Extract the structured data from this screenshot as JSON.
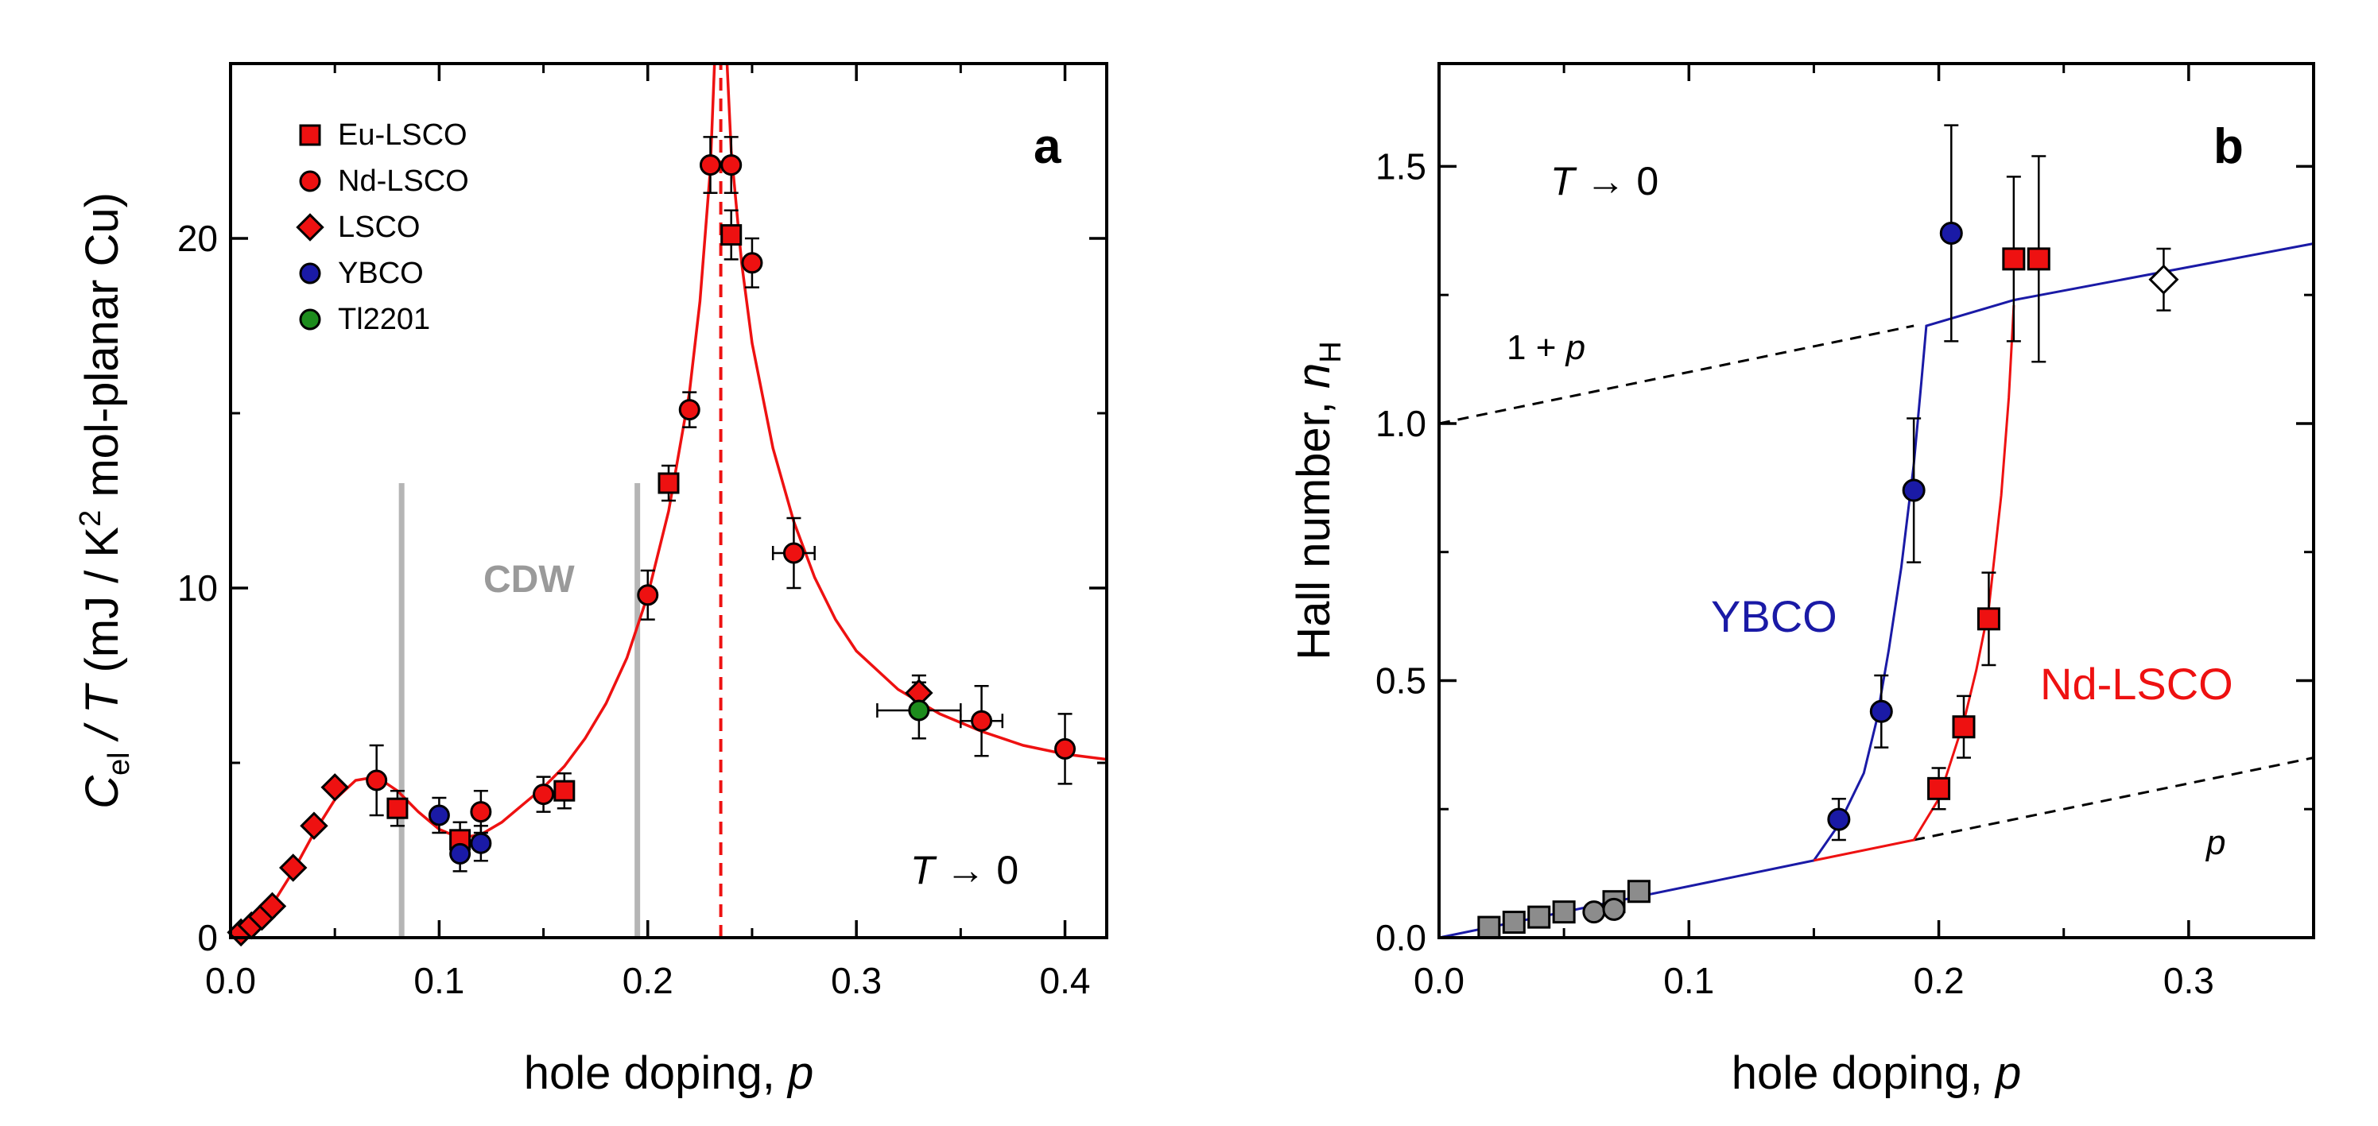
{
  "chart_data": [
    {
      "id": "a",
      "type": "scatter",
      "panel_label": "a",
      "xlabel_text": "hole doping, ",
      "xlabel_var": "p",
      "ylabel_C": "C",
      "ylabel_sub": "el",
      "ylabel_T": " / T",
      "ylabel_units_1": " (mJ / K",
      "ylabel_sup": "2",
      "ylabel_units_2": " mol-planar Cu)",
      "xlim": [
        0,
        0.42
      ],
      "ylim": [
        0,
        25
      ],
      "xticks": [
        0.0,
        0.1,
        0.2,
        0.3,
        0.4
      ],
      "xtick_labels": [
        "0.0",
        "0.1",
        "0.2",
        "0.3",
        "0.4"
      ],
      "yticks": [
        0,
        10,
        20
      ],
      "ytick_labels": [
        "0",
        "10",
        "20"
      ],
      "annotation_T": "T",
      "annotation_rest": " → 0",
      "cdw_label": "CDW",
      "cdw_lines": [
        {
          "x": 0.082,
          "y1": 0,
          "y2": 13
        },
        {
          "x": 0.195,
          "y1": 0,
          "y2": 13
        }
      ],
      "pstar_line": {
        "x": 0.235,
        "y1": 0,
        "y2": 25
      },
      "colors": {
        "red": "#ee1111",
        "blue": "#1a1aa6",
        "green": "#1d8c1d",
        "gray": "#b5b5b5"
      },
      "legend": [
        {
          "label": "Eu-LSCO",
          "marker": "square",
          "color": "#ee1111"
        },
        {
          "label": "Nd-LSCO",
          "marker": "circle",
          "color": "#ee1111"
        },
        {
          "label": "LSCO",
          "marker": "diamond",
          "color": "#ee1111"
        },
        {
          "label": "YBCO",
          "marker": "circle",
          "color": "#1a1aa6"
        },
        {
          "label": "Tl2201",
          "marker": "circle",
          "color": "#1d8c1d"
        }
      ],
      "series": [
        {
          "name": "Eu-LSCO",
          "marker": "square",
          "color": "#ee1111",
          "points": [
            {
              "x": 0.08,
              "y": 3.7,
              "ey": 0.5
            },
            {
              "x": 0.11,
              "y": 2.8,
              "ey": 0.5
            },
            {
              "x": 0.16,
              "y": 4.2,
              "ey": 0.5
            },
            {
              "x": 0.21,
              "y": 13.0,
              "ey": 0.5
            },
            {
              "x": 0.24,
              "y": 20.1,
              "ey": 0.7
            }
          ]
        },
        {
          "name": "Nd-LSCO",
          "marker": "circle",
          "color": "#ee1111",
          "points": [
            {
              "x": 0.07,
              "y": 4.5,
              "ey": 1.0
            },
            {
              "x": 0.12,
              "y": 3.6,
              "ey": 0.6
            },
            {
              "x": 0.15,
              "y": 4.1,
              "ey": 0.5
            },
            {
              "x": 0.2,
              "y": 9.8,
              "ey": 0.7
            },
            {
              "x": 0.22,
              "y": 15.1,
              "ey": 0.5
            },
            {
              "x": 0.23,
              "y": 22.1,
              "ey": 0.8
            },
            {
              "x": 0.24,
              "y": 22.1,
              "ey": 0.8
            },
            {
              "x": 0.25,
              "y": 19.3,
              "ey": 0.7
            },
            {
              "x": 0.27,
              "y": 11.0,
              "ey": 1.0,
              "ex": 0.01
            },
            {
              "x": 0.36,
              "y": 6.2,
              "ey": 1.0,
              "ex": 0.01
            },
            {
              "x": 0.4,
              "y": 5.4,
              "ey": 1.0
            }
          ]
        },
        {
          "name": "LSCO",
          "marker": "diamond",
          "color": "#ee1111",
          "points": [
            {
              "x": 0.005,
              "y": 0.15
            },
            {
              "x": 0.01,
              "y": 0.35
            },
            {
              "x": 0.015,
              "y": 0.6
            },
            {
              "x": 0.02,
              "y": 0.9
            },
            {
              "x": 0.03,
              "y": 2.0
            },
            {
              "x": 0.04,
              "y": 3.2
            },
            {
              "x": 0.05,
              "y": 4.3
            },
            {
              "x": 0.33,
              "y": 7.0,
              "ey": 0.5
            }
          ]
        },
        {
          "name": "YBCO",
          "marker": "circle",
          "color": "#1a1aa6",
          "points": [
            {
              "x": 0.1,
              "y": 3.5,
              "ey": 0.5
            },
            {
              "x": 0.11,
              "y": 2.4,
              "ey": 0.5
            },
            {
              "x": 0.12,
              "y": 2.7,
              "ey": 0.5
            }
          ]
        },
        {
          "name": "Tl2201",
          "marker": "circle",
          "color": "#1d8c1d",
          "points": [
            {
              "x": 0.33,
              "y": 6.5,
              "ey": 0.8,
              "ex": 0.02
            }
          ]
        }
      ],
      "fit_curve": {
        "color": "#ee1111",
        "points": [
          [
            0.0,
            0.0
          ],
          [
            0.01,
            0.35
          ],
          [
            0.02,
            0.95
          ],
          [
            0.03,
            1.9
          ],
          [
            0.04,
            3.0
          ],
          [
            0.05,
            3.95
          ],
          [
            0.06,
            4.5
          ],
          [
            0.07,
            4.6
          ],
          [
            0.08,
            4.2
          ],
          [
            0.09,
            3.6
          ],
          [
            0.1,
            3.1
          ],
          [
            0.11,
            2.85
          ],
          [
            0.12,
            2.95
          ],
          [
            0.13,
            3.3
          ],
          [
            0.14,
            3.8
          ],
          [
            0.15,
            4.3
          ],
          [
            0.16,
            4.9
          ],
          [
            0.17,
            5.7
          ],
          [
            0.18,
            6.7
          ],
          [
            0.19,
            8.0
          ],
          [
            0.2,
            9.8
          ],
          [
            0.21,
            12.2
          ],
          [
            0.22,
            15.6
          ],
          [
            0.225,
            18.2
          ],
          [
            0.23,
            22.0
          ],
          [
            0.232,
            25.0
          ],
          [
            0.238,
            25.0
          ],
          [
            0.24,
            22.5
          ],
          [
            0.245,
            19.3
          ],
          [
            0.25,
            17.0
          ],
          [
            0.26,
            14.0
          ],
          [
            0.27,
            11.9
          ],
          [
            0.28,
            10.3
          ],
          [
            0.29,
            9.1
          ],
          [
            0.3,
            8.2
          ],
          [
            0.32,
            7.1
          ],
          [
            0.34,
            6.4
          ],
          [
            0.36,
            5.9
          ],
          [
            0.38,
            5.5
          ],
          [
            0.4,
            5.25
          ],
          [
            0.42,
            5.1
          ]
        ]
      }
    },
    {
      "id": "b",
      "type": "scatter",
      "panel_label": "b",
      "xlabel_text": "hole doping, ",
      "xlabel_var": "p",
      "ylabel_text": "Hall number, ",
      "ylabel_var": "n",
      "ylabel_sub": "H",
      "xlim": [
        0,
        0.35
      ],
      "ylim": [
        0,
        1.7
      ],
      "xticks": [
        0.0,
        0.1,
        0.2,
        0.3
      ],
      "xtick_labels": [
        "0.0",
        "0.1",
        "0.2",
        "0.3"
      ],
      "yticks": [
        0.0,
        0.5,
        1.0,
        1.5
      ],
      "ytick_labels": [
        "0.0",
        "0.5",
        "1.0",
        "1.5"
      ],
      "annotation_T": "T",
      "annotation_rest": " → 0",
      "label_1p_text": "1 + ",
      "label_1p_var": "p",
      "label_p": "p",
      "label_ybco": "YBCO",
      "label_ndlsco": "Nd-LSCO",
      "colors": {
        "red": "#ee1111",
        "blue": "#1a1aa6",
        "gray": "#8c8c8c"
      },
      "dashed_lines": [
        {
          "name": "1+p",
          "x1": 0.0,
          "y1": 1.0,
          "x2": 0.19,
          "y2": 1.19
        },
        {
          "name": "p",
          "x1": 0.19,
          "y1": 0.19,
          "x2": 0.35,
          "y2": 0.35
        }
      ],
      "blue_line": {
        "color": "#1a1aa6",
        "points": [
          [
            0.0,
            0.0
          ],
          [
            0.15,
            0.15
          ],
          [
            0.16,
            0.22
          ],
          [
            0.17,
            0.32
          ],
          [
            0.175,
            0.42
          ],
          [
            0.18,
            0.56
          ],
          [
            0.185,
            0.72
          ],
          [
            0.19,
            0.92
          ],
          [
            0.193,
            1.08
          ],
          [
            0.195,
            1.19
          ],
          [
            0.23,
            1.24
          ],
          [
            0.35,
            1.35
          ]
        ]
      },
      "red_line": {
        "color": "#ee1111",
        "points": [
          [
            0.15,
            0.15
          ],
          [
            0.19,
            0.19
          ],
          [
            0.2,
            0.27
          ],
          [
            0.21,
            0.42
          ],
          [
            0.215,
            0.52
          ],
          [
            0.22,
            0.64
          ],
          [
            0.225,
            0.86
          ],
          [
            0.228,
            1.05
          ],
          [
            0.23,
            1.23
          ]
        ]
      },
      "series": [
        {
          "name": "YBCO",
          "marker": "circle",
          "color": "#1a1aa6",
          "points": [
            {
              "x": 0.16,
              "y": 0.23,
              "ey": 0.04
            },
            {
              "x": 0.177,
              "y": 0.44,
              "ey": 0.07
            },
            {
              "x": 0.19,
              "y": 0.87,
              "ey": 0.14
            },
            {
              "x": 0.205,
              "y": 1.37,
              "ey": 0.21
            }
          ]
        },
        {
          "name": "Nd-LSCO",
          "marker": "square",
          "color": "#ee1111",
          "points": [
            {
              "x": 0.2,
              "y": 0.29,
              "ey": 0.04
            },
            {
              "x": 0.21,
              "y": 0.41,
              "ey": 0.06
            },
            {
              "x": 0.22,
              "y": 0.62,
              "ey": 0.09
            },
            {
              "x": 0.23,
              "y": 1.32,
              "ey": 0.16
            },
            {
              "x": 0.24,
              "y": 1.32,
              "ey": 0.2
            }
          ]
        },
        {
          "name": "LSCO",
          "marker": "diamond",
          "color": "#ffffff",
          "points": [
            {
              "x": 0.29,
              "y": 1.28,
              "ey": 0.06
            }
          ]
        },
        {
          "name": "low-p squares",
          "marker": "square",
          "color": "#8c8c8c",
          "points": [
            {
              "x": 0.02,
              "y": 0.02
            },
            {
              "x": 0.03,
              "y": 0.03
            },
            {
              "x": 0.04,
              "y": 0.04
            },
            {
              "x": 0.05,
              "y": 0.05
            },
            {
              "x": 0.07,
              "y": 0.07
            },
            {
              "x": 0.08,
              "y": 0.09
            }
          ]
        },
        {
          "name": "low-p circles",
          "marker": "circle",
          "color": "#8c8c8c",
          "points": [
            {
              "x": 0.062,
              "y": 0.05
            },
            {
              "x": 0.07,
              "y": 0.055
            }
          ]
        }
      ]
    }
  ]
}
